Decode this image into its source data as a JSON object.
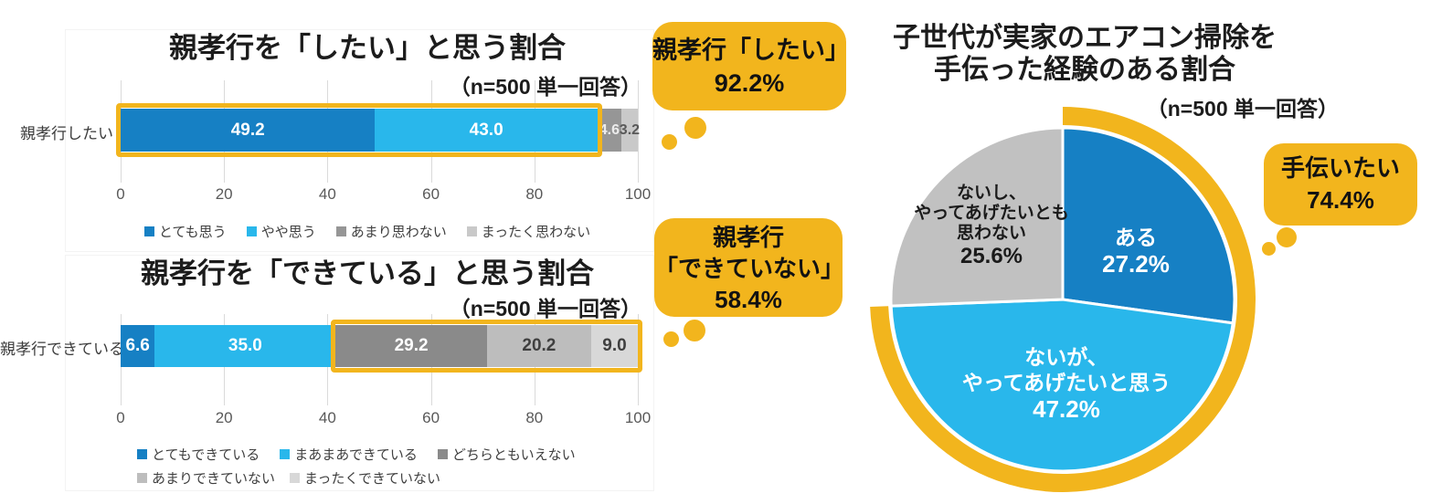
{
  "colors": {
    "accent_yellow": "#F2B51D",
    "blue_dark": "#1680C4",
    "blue_light": "#29B7EB",
    "gray_dark": "#8A8A8A",
    "gray_mid": "#BDBDBD",
    "gray_light": "#D8D8D8",
    "gridline": "#DADADA",
    "title_text": "#1C1C1C"
  },
  "callouts": [
    {
      "name": "want-result",
      "lines": [
        "親孝行「したい」",
        "92.2%"
      ]
    },
    {
      "name": "cannot-result",
      "lines": [
        "親孝行",
        "「できていない」",
        "58.4%"
      ]
    },
    {
      "name": "help-result",
      "lines": [
        "手伝いたい",
        "74.4%"
      ]
    }
  ],
  "chart_data": [
    {
      "type": "bar",
      "orientation": "horizontal",
      "stacked": true,
      "title": "親孝行を「したい」と思う割合",
      "subtitle": "（n=500 単一回答）",
      "categories": [
        "親孝行したい"
      ],
      "series": [
        {
          "name": "とても思う",
          "values": [
            49.2
          ],
          "color": "#1680C4",
          "label_color": "#FFFFFF"
        },
        {
          "name": "やや思う",
          "values": [
            43.0
          ],
          "color": "#29B7EB",
          "label_color": "#FFFFFF"
        },
        {
          "name": "あまり思わない",
          "values": [
            4.6
          ],
          "color": "#969696",
          "label_color": "#ECECEC"
        },
        {
          "name": "まったく思わない",
          "values": [
            3.2
          ],
          "color": "#C9C9C9",
          "label_color": "#595959"
        }
      ],
      "xlim": [
        0,
        100
      ],
      "ticks": [
        0,
        20,
        40,
        60,
        80,
        100
      ],
      "grid": true,
      "legend_position": "bottom",
      "highlight_range": {
        "from": 0,
        "to": 92.2
      },
      "legend_lines": [
        [
          "とても思う",
          "やや思う",
          "あまり思わない",
          "まったく思わない"
        ]
      ]
    },
    {
      "type": "bar",
      "orientation": "horizontal",
      "stacked": true,
      "title": "親孝行を「できている」と思う割合",
      "subtitle": "（n=500 単一回答）",
      "categories": [
        "親孝行できている"
      ],
      "series": [
        {
          "name": "とてもできている",
          "values": [
            6.6
          ],
          "color": "#1680C4",
          "label_color": "#FFFFFF"
        },
        {
          "name": "まあまあできている",
          "values": [
            35.0
          ],
          "color": "#29B7EB",
          "label_color": "#FFFFFF"
        },
        {
          "name": "どちらともいえない",
          "values": [
            29.2
          ],
          "color": "#8A8A8A",
          "label_color": "#FFFFFF"
        },
        {
          "name": "あまりできていない",
          "values": [
            20.2
          ],
          "color": "#BDBDBD",
          "label_color": "#3F3F3F"
        },
        {
          "name": "まったくできていない",
          "values": [
            9.0
          ],
          "color": "#D8D8D8",
          "label_color": "#3F3F3F"
        }
      ],
      "xlim": [
        0,
        100
      ],
      "ticks": [
        0,
        20,
        40,
        60,
        80,
        100
      ],
      "grid": true,
      "legend_position": "bottom",
      "highlight_range": {
        "from": 41.6,
        "to": 100
      },
      "legend_lines": [
        [
          "とてもできている",
          "まあまあできている",
          "どちらともいえない"
        ],
        [
          "あまりできていない",
          "まったくできていない"
        ]
      ]
    },
    {
      "type": "pie",
      "title_lines": [
        "子世代が実家のエアコン掃除を",
        "手伝った経験のある割合"
      ],
      "subtitle": "（n=500 単一回答）",
      "start_angle_deg": 0,
      "direction": "clockwise",
      "slices": [
        {
          "label_lines": [
            "ある"
          ],
          "pct_label": "27.2%",
          "value": 27.2,
          "color": "#1680C4",
          "text_color": "#FFFFFF"
        },
        {
          "label_lines": [
            "ないが、",
            "やってあげたいと思う"
          ],
          "pct_label": "47.2%",
          "value": 47.2,
          "color": "#29B7EB",
          "text_color": "#FFFFFF"
        },
        {
          "label_lines": [
            "ないし、",
            "やってあげたいとも",
            "思わない"
          ],
          "pct_label": "25.6%",
          "value": 25.6,
          "color": "#C1C1C1",
          "text_color": "#1A1A1A"
        }
      ],
      "highlight_arc": {
        "from_pct": 0,
        "to_pct": 74.4
      }
    }
  ]
}
